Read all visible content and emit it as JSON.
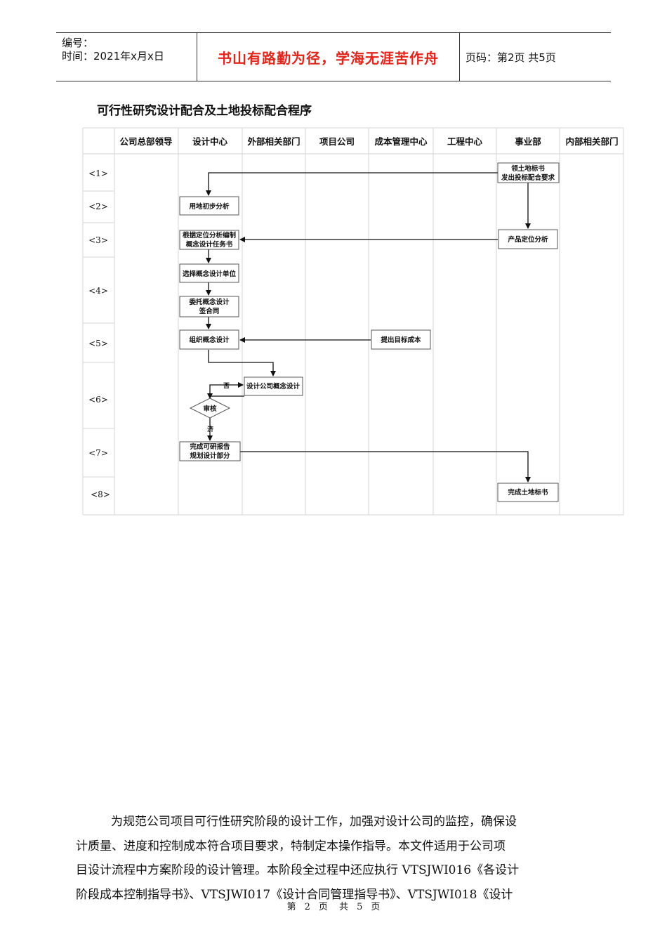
{
  "header": {
    "number_label": "编号：",
    "date_label": "时间：2021年x月x日",
    "motto": "书山有路勤为径，学海无涯苦作舟",
    "page_label": "页码：第2页  共5页"
  },
  "title": "可行性研究设计配合及土地投标配合程序",
  "flowchart": {
    "columns": [
      "公司总部领导",
      "设计中心",
      "外部相关部门",
      "项目公司",
      "成本管理中心",
      "工程中心",
      "事业部",
      "内部相关部门"
    ],
    "rows": [
      "<1>",
      "<2>",
      "<3>",
      "<4>",
      "<5>",
      "<6>",
      "<7>",
      "<8>"
    ],
    "boxes": {
      "b1_line1": "领土地标书",
      "b1_line2": "发出投标配合要求",
      "b2": "用地初步分析",
      "b3_line1": "根据定位分析编制",
      "b3_line2": "概念设计任务书",
      "b4": "产品定位分析",
      "b5": "选择概念设计单位",
      "b6_line1": "委托概念设计",
      "b6_line2": "签合同",
      "b7": "组织概念设计",
      "b8": "提出目标成本",
      "b9": "设计公司概念设计",
      "b10": "审核",
      "b11_line1": "完成可研报告",
      "b11_line2": "规划设计部分",
      "b12": "完成土地标书"
    },
    "labels": {
      "no": "否",
      "yes": "济"
    }
  },
  "body_lines": [
    "为规范公司项目可行性研究阶段的设计工作，加强对设计公司的监控，确保设",
    "计质量、进度和控制成本符合项目要求，特制定本操作指导。本文件适用于公司项",
    "目设计流程中方案阶段的设计管理。本阶段全过程中还应执行 VTSJWI016《各设计",
    "阶段成本控制指导书》、VTSJWI017《设计合同管理指导书》、VTSJWI018《设计"
  ],
  "footer": {
    "p1": "第",
    "p2": "2",
    "p3": "页",
    "p4": "共",
    "p5": "5",
    "p6": "页"
  }
}
